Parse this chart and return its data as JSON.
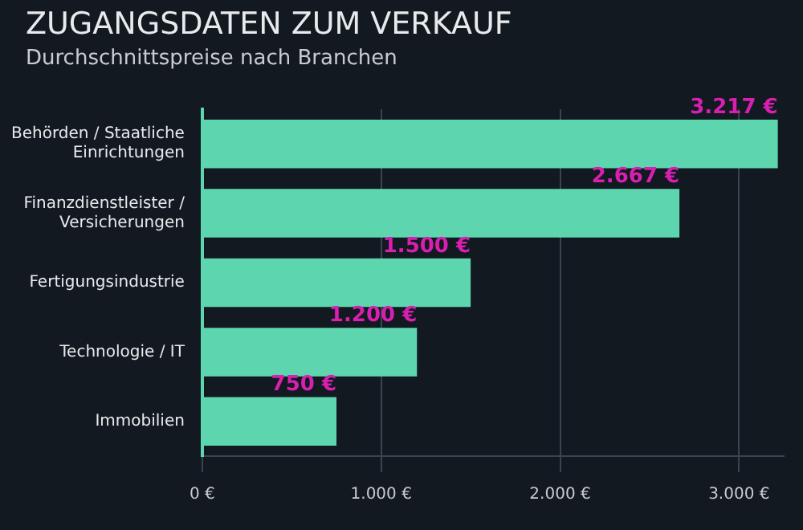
{
  "chart_data": {
    "type": "bar",
    "orientation": "horizontal",
    "title": "ZUGANGSDATEN ZUM VERKAUF",
    "subtitle": "Durchschnittspreise nach Branchen",
    "categories": [
      "Behörden / Staatliche Einrichtungen",
      "Finanzdienstleister / Versicherungen",
      "Fertigungsindustrie",
      "Technologie / IT",
      "Immobilien"
    ],
    "values": [
      3217,
      2667,
      1500,
      1200,
      750
    ],
    "value_labels": [
      "3.217 €",
      "2.667 €",
      "1.500 €",
      "1.200 €",
      "750 €"
    ],
    "color": "#5dd6b0",
    "xlim": [
      0,
      3250
    ],
    "xticks": [
      {
        "value": 0,
        "label": "0 €"
      },
      {
        "value": 1000,
        "label": "1.000 €"
      },
      {
        "value": 2000,
        "label": "2.000 €"
      },
      {
        "value": 3000,
        "label": "3.000 €"
      }
    ],
    "grid": "x",
    "legend": false
  }
}
